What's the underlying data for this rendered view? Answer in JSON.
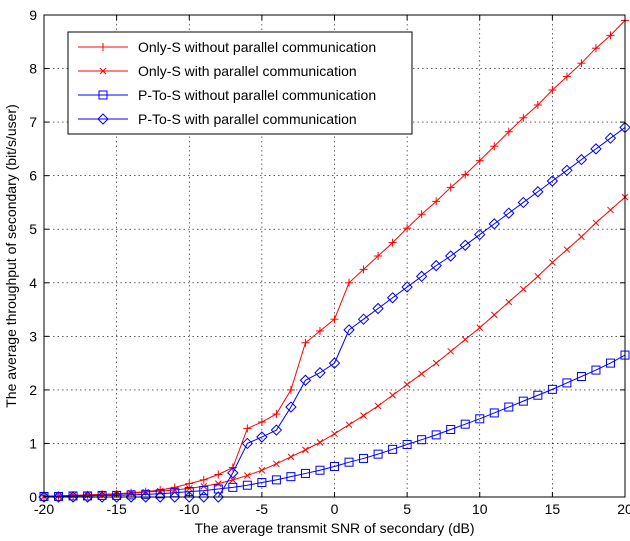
{
  "chart_data": {
    "type": "line",
    "xlabel": "The average transmit SNR of secondary (dB)",
    "ylabel": "The average throughput of secondary (bit/s/user)",
    "xlim": [
      -20,
      20
    ],
    "ylim": [
      0,
      9
    ],
    "xticks": [
      -20,
      -15,
      -10,
      -5,
      0,
      5,
      10,
      15,
      20
    ],
    "yticks": [
      0,
      1,
      2,
      3,
      4,
      5,
      6,
      7,
      8,
      9
    ],
    "xtick_labels": [
      "-20",
      "-15",
      "-10",
      "-5",
      "0",
      "5",
      "10",
      "15",
      "20"
    ],
    "ytick_labels": [
      "0",
      "1",
      "2",
      "3",
      "4",
      "5",
      "6",
      "7",
      "8",
      "9"
    ],
    "grid": true,
    "legend_position": "top-left",
    "series": [
      {
        "name": "Only-S without parallel communication",
        "color": "#ff0000",
        "marker": "plus",
        "x": [
          -20,
          -19,
          -18,
          -17,
          -16,
          -15,
          -14,
          -13,
          -12,
          -11,
          -10,
          -9,
          -8,
          -7,
          -6,
          -5,
          -4,
          -3,
          -2,
          -1,
          0,
          1,
          2,
          3,
          4,
          5,
          6,
          7,
          8,
          9,
          10,
          11,
          12,
          13,
          14,
          15,
          16,
          17,
          18,
          19,
          20
        ],
        "values": [
          0.02,
          0.02,
          0.03,
          0.04,
          0.05,
          0.06,
          0.08,
          0.1,
          0.13,
          0.18,
          0.25,
          0.32,
          0.42,
          0.55,
          1.28,
          1.4,
          1.55,
          2.0,
          2.88,
          3.1,
          3.32,
          4.0,
          4.25,
          4.5,
          4.75,
          5.02,
          5.28,
          5.52,
          5.78,
          6.02,
          6.28,
          6.55,
          6.82,
          7.08,
          7.32,
          7.6,
          7.85,
          8.1,
          8.38,
          8.62,
          8.9
        ]
      },
      {
        "name": "Only-S with parallel communication",
        "color": "#ff0000",
        "marker": "x",
        "x": [
          -20,
          -19,
          -18,
          -17,
          -16,
          -15,
          -14,
          -13,
          -12,
          -11,
          -10,
          -9,
          -8,
          -7,
          -6,
          -5,
          -4,
          -3,
          -2,
          -1,
          0,
          1,
          2,
          3,
          4,
          5,
          6,
          7,
          8,
          9,
          10,
          11,
          12,
          13,
          14,
          15,
          16,
          17,
          18,
          19,
          20
        ],
        "values": [
          0.01,
          0.02,
          0.03,
          0.03,
          0.04,
          0.05,
          0.07,
          0.09,
          0.11,
          0.13,
          0.16,
          0.2,
          0.25,
          0.32,
          0.4,
          0.5,
          0.62,
          0.75,
          0.88,
          1.02,
          1.18,
          1.35,
          1.52,
          1.7,
          1.9,
          2.1,
          2.3,
          2.5,
          2.72,
          2.94,
          3.16,
          3.4,
          3.64,
          3.88,
          4.12,
          4.38,
          4.62,
          4.86,
          5.12,
          5.36,
          5.6
        ]
      },
      {
        "name": "P-To-S without parallel communication",
        "color": "#0000ff",
        "marker": "square",
        "x": [
          -20,
          -19,
          -18,
          -17,
          -16,
          -15,
          -14,
          -13,
          -12,
          -11,
          -10,
          -9,
          -8,
          -7,
          -6,
          -5,
          -4,
          -3,
          -2,
          -1,
          0,
          1,
          2,
          3,
          4,
          5,
          6,
          7,
          8,
          9,
          10,
          11,
          12,
          13,
          14,
          15,
          16,
          17,
          18,
          19,
          20
        ],
        "values": [
          0.01,
          0.01,
          0.02,
          0.02,
          0.03,
          0.03,
          0.04,
          0.05,
          0.06,
          0.08,
          0.1,
          0.12,
          0.15,
          0.18,
          0.22,
          0.27,
          0.32,
          0.38,
          0.44,
          0.5,
          0.57,
          0.65,
          0.72,
          0.8,
          0.89,
          0.98,
          1.07,
          1.16,
          1.26,
          1.36,
          1.46,
          1.57,
          1.68,
          1.79,
          1.9,
          2.01,
          2.13,
          2.25,
          2.37,
          2.5,
          2.65
        ]
      },
      {
        "name": "P-To-S with parallel communication",
        "color": "#0000ff",
        "marker": "diamond",
        "x": [
          -20,
          -19,
          -18,
          -17,
          -16,
          -15,
          -14,
          -13,
          -12,
          -11,
          -10,
          -9,
          -8,
          -7,
          -6,
          -5,
          -4,
          -3,
          -2,
          -1,
          0,
          1,
          2,
          3,
          4,
          5,
          6,
          7,
          8,
          9,
          10,
          11,
          12,
          13,
          14,
          15,
          16,
          17,
          18,
          19,
          20
        ],
        "values": [
          0.0,
          0.0,
          0.0,
          0.0,
          0.0,
          0.0,
          0.0,
          0.0,
          0.0,
          0.0,
          0.0,
          0.0,
          0.0,
          0.45,
          1.0,
          1.12,
          1.25,
          1.68,
          2.18,
          2.32,
          2.5,
          3.12,
          3.32,
          3.52,
          3.72,
          3.92,
          4.12,
          4.32,
          4.5,
          4.7,
          4.9,
          5.1,
          5.3,
          5.5,
          5.7,
          5.9,
          6.1,
          6.3,
          6.5,
          6.7,
          6.9
        ]
      }
    ]
  }
}
